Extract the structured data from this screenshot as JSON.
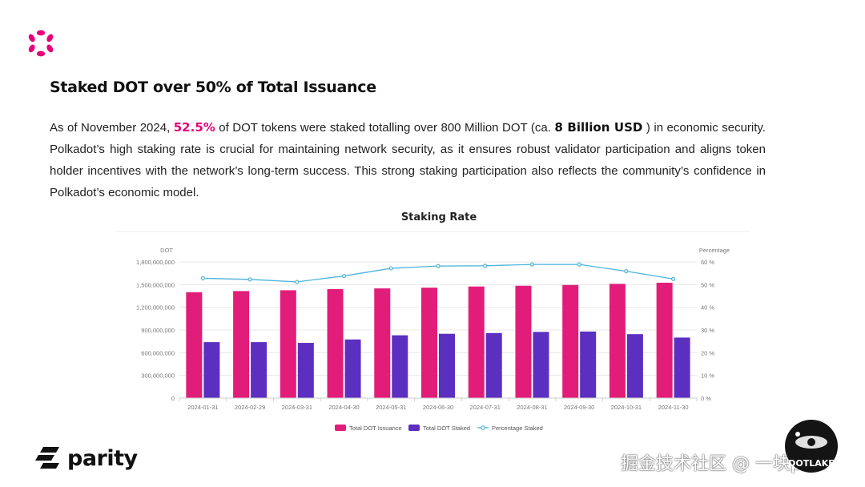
{
  "slide": {
    "title": "Staked DOT over 50% of Total Issuance",
    "paragraph": {
      "part1": "As of November 2024, ",
      "highlight_pct": "52.5%",
      "part2": " of DOT tokens were staked totalling over 800 Million DOT (ca. ",
      "highlight_usd": "8 Billion USD",
      "part3": " ) in economic security. Polkadot’s high staking rate is crucial for maintaining network security, as it ensures robust validator participation and aligns token holder incentives with the network’s long-term success. This strong staking participation also reflects the community’s confidence in Polkadot’s economic model."
    }
  },
  "footer": {
    "brand": "parity",
    "watermark": "掘金技术社区 @ 一块plus",
    "badge_text": "DOTLAKE"
  },
  "colors": {
    "issuance": "#e21d79",
    "staked": "#5b2fc0",
    "percentage": "#4cb3dc",
    "polkadot_pink": "#e6007a"
  },
  "chart_data": {
    "type": "bar",
    "title": "Staking Rate",
    "ylabel": "DOT",
    "y2label": "Percentage",
    "ylim": [
      0,
      1800000000
    ],
    "y2lim": [
      0,
      60
    ],
    "yticks": [
      "0",
      "300,000,000",
      "600,000,000",
      "900,000,000",
      "1,200,000,000",
      "1,500,000,000",
      "1,800,000,000"
    ],
    "y2ticks": [
      "0 %",
      "10 %",
      "20 %",
      "30 %",
      "40 %",
      "50 %",
      "60 %"
    ],
    "categories": [
      "2024-01-31",
      "2024-02-29",
      "2024-03-31",
      "2024-04-30",
      "2024-05-31",
      "2024-06-30",
      "2024-07-31",
      "2024-08-31",
      "2024-09-30",
      "2024-10-31",
      "2024-11-30"
    ],
    "series": [
      {
        "name": "Total DOT Issuance",
        "type": "bar",
        "values": [
          1400000000,
          1415000000,
          1425000000,
          1440000000,
          1450000000,
          1460000000,
          1475000000,
          1485000000,
          1495000000,
          1510000000,
          1525000000
        ]
      },
      {
        "name": "Total DOT Staked",
        "type": "bar",
        "values": [
          740000000,
          740000000,
          730000000,
          775000000,
          830000000,
          850000000,
          860000000,
          875000000,
          880000000,
          845000000,
          800000000
        ]
      },
      {
        "name": "Percentage Staked",
        "type": "line",
        "axis": "right",
        "values": [
          52.8,
          52.3,
          51.2,
          53.8,
          57.2,
          58.2,
          58.3,
          58.9,
          58.9,
          55.9,
          52.5
        ]
      }
    ],
    "legend": "bottom-center"
  }
}
